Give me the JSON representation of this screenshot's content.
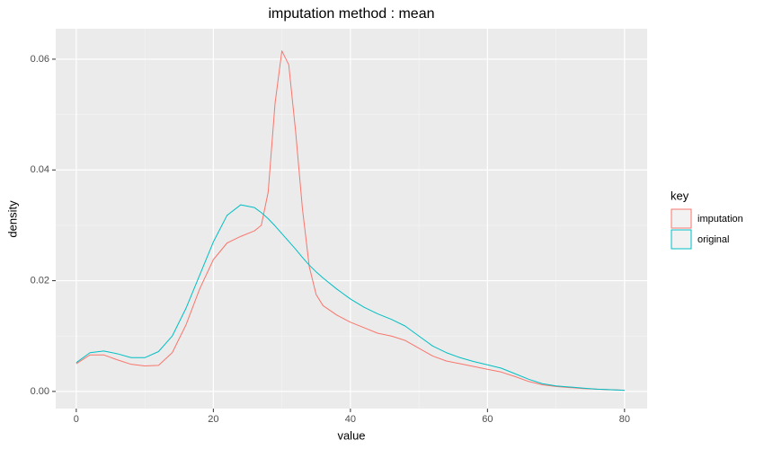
{
  "chart_data": {
    "type": "line",
    "title": "imputation method : mean",
    "x_label": "value",
    "y_label": "density",
    "legend_title": "key",
    "x": [
      0,
      2,
      4,
      6,
      8,
      10,
      12,
      14,
      16,
      18,
      20,
      22,
      24,
      26,
      27,
      28,
      29,
      30,
      31,
      32,
      33,
      34,
      35,
      36,
      38,
      40,
      42,
      44,
      46,
      48,
      50,
      52,
      54,
      56,
      58,
      60,
      62,
      64,
      66,
      68,
      70,
      72,
      74,
      76,
      78,
      80
    ],
    "series": [
      {
        "name": "imputation",
        "color": "#f8766d",
        "values": [
          0.005,
          0.0066,
          0.0066,
          0.0057,
          0.0049,
          0.0046,
          0.0047,
          0.007,
          0.012,
          0.0185,
          0.0238,
          0.0268,
          0.028,
          0.029,
          0.03,
          0.036,
          0.052,
          0.0615,
          0.059,
          0.047,
          0.033,
          0.0225,
          0.0175,
          0.0155,
          0.0138,
          0.0125,
          0.0115,
          0.0105,
          0.01,
          0.0092,
          0.0078,
          0.0064,
          0.0055,
          0.005,
          0.0045,
          0.004,
          0.0035,
          0.0027,
          0.0018,
          0.0012,
          0.0009,
          0.0007,
          0.0005,
          0.0004,
          0.0003,
          0.0002
        ]
      },
      {
        "name": "original",
        "color": "#00bfc4",
        "values": [
          0.0052,
          0.007,
          0.0073,
          0.0068,
          0.0061,
          0.0061,
          0.0072,
          0.01,
          0.015,
          0.021,
          0.027,
          0.0318,
          0.0337,
          0.0332,
          0.0323,
          0.0312,
          0.0299,
          0.0285,
          0.0271,
          0.0257,
          0.0242,
          0.0228,
          0.0216,
          0.0205,
          0.0185,
          0.0167,
          0.0152,
          0.014,
          0.013,
          0.0118,
          0.01,
          0.0082,
          0.007,
          0.0061,
          0.0054,
          0.0048,
          0.0042,
          0.0032,
          0.0022,
          0.0014,
          0.001,
          0.0008,
          0.0006,
          0.0004,
          0.0003,
          0.0002
        ]
      }
    ],
    "xlim": [
      -3.0,
      83.3
    ],
    "xticks": [
      0,
      20,
      40,
      60,
      80
    ],
    "ylim": [
      -0.0031,
      0.0655
    ],
    "yticks": [
      {
        "value": 0,
        "label": "0.00"
      },
      {
        "value": 0.02,
        "label": "0.02"
      },
      {
        "value": 0.04,
        "label": "0.04"
      },
      {
        "value": 0.06,
        "label": "0.06"
      }
    ],
    "grid": true
  }
}
